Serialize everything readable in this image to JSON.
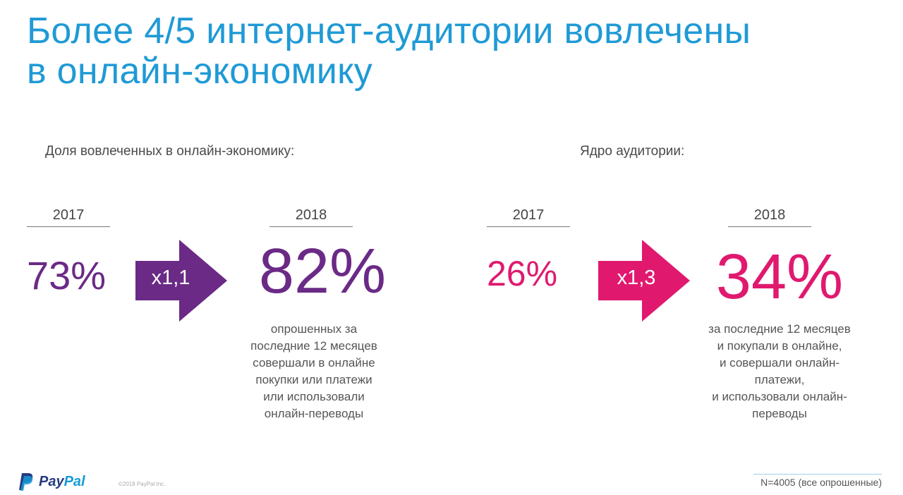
{
  "title": {
    "line1": "Более 4/5 интернет-аудитории вовлечены",
    "line2": "в онлайн-экономику"
  },
  "left": {
    "heading": "Доля вовлеченных в онлайн-экономику:",
    "year_before": "2017",
    "value_before": "73%",
    "multiplier": "x1,1",
    "year_after": "2018",
    "value_after": "82%",
    "description_lines": [
      "опрошенных за",
      "последние 12 месяцев",
      "совершали в онлайне",
      "покупки или платежи",
      "или использовали",
      "онлайн-переводы"
    ],
    "color": "#6a2a86"
  },
  "right": {
    "heading": "Ядро аудитории:",
    "year_before": "2017",
    "value_before": "26%",
    "multiplier": "x1,3",
    "year_after": "2018",
    "value_after": "34%",
    "description_lines": [
      "за последние 12 месяцев",
      "и покупали в онлайне,",
      "и совершали онлайн-",
      "платежи,",
      "и использовали онлайн-",
      "переводы"
    ],
    "color": "#e0196f"
  },
  "footer": {
    "logo_pay": "Pay",
    "logo_pal": "Pal",
    "copyright": "©2018 PayPal Inc.",
    "note": "N=4005 (все опрошенные)"
  },
  "colors": {
    "title": "#1f9ad6",
    "purple": "#6a2a86",
    "pink": "#e0196f"
  }
}
